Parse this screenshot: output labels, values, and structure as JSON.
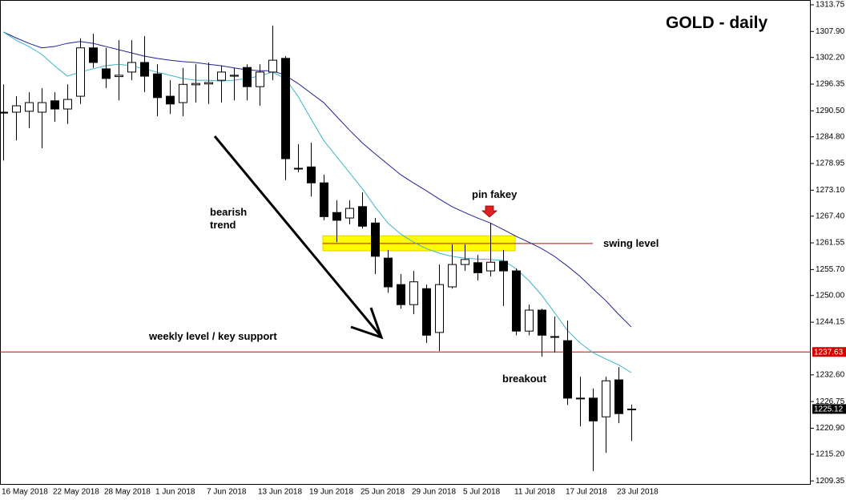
{
  "chart_data": {
    "type": "candlestick",
    "title": "GOLD - daily",
    "categories": [
      "16 May 2018",
      null,
      null,
      null,
      "22 May 2018",
      null,
      null,
      null,
      "28 May 2018",
      null,
      null,
      null,
      "1 Jun 2018",
      null,
      null,
      null,
      "7 Jun 2018",
      null,
      null,
      null,
      "13 Jun 2018",
      null,
      null,
      null,
      "19 Jun 2018",
      null,
      null,
      null,
      "25 Jun 2018",
      null,
      null,
      null,
      "29 Jun 2018",
      null,
      null,
      null,
      "5 Jul 2018",
      null,
      null,
      null,
      "11 Jul 2018",
      null,
      null,
      null,
      "17 Jul 2018",
      null,
      null,
      null,
      "23 Jul 2018",
      null
    ],
    "open": [
      1290.2,
      1290.2,
      1290.4,
      1290.2,
      1292.7,
      1290.9,
      1293.7,
      1304.3,
      1299.7,
      1298.0,
      1299.0,
      1301.1,
      1298.6,
      1293.7,
      1292.3,
      1296.2,
      1296.4,
      1297.2,
      1298.1,
      1300.0,
      1295.8,
      1299.0,
      1302.0,
      1277.9,
      1278.2,
      1274.7,
      1268.2,
      1267.0,
      1269.5,
      1265.9,
      1258.2,
      1252.4,
      1248.0,
      1251.5,
      1241.9,
      1251.9,
      1256.8,
      1257.2,
      1255.4,
      1257.5,
      1255.4,
      1242.2,
      1246.8,
      1241.0,
      1240.1,
      1227.5,
      1227.5,
      1223.4,
      1231.5,
      1225.0
    ],
    "high": [
      1296.3,
      1293.7,
      1294.6,
      1295.5,
      1294.6,
      1296.3,
      1306.4,
      1307.4,
      1304.3,
      1306.0,
      1306.0,
      1306.9,
      1300.7,
      1297.2,
      1299.9,
      1300.7,
      1301.1,
      1300.4,
      1299.9,
      1300.7,
      1300.7,
      1309.2,
      1302.5,
      1283.2,
      1283.5,
      1276.5,
      1270.9,
      1270.9,
      1272.6,
      1267.0,
      1260.0,
      1254.7,
      1255.4,
      1252.4,
      1256.8,
      1261.2,
      1261.2,
      1258.9,
      1265.9,
      1260.0,
      1255.9,
      1248.0,
      1247.1,
      1245.4,
      1244.5,
      1232.2,
      1229.6,
      1232.2,
      1234.3,
      1226.1
    ],
    "low": [
      1279.6,
      1284.0,
      1286.7,
      1282.3,
      1288.1,
      1287.6,
      1292.0,
      1299.9,
      1295.5,
      1292.8,
      1297.2,
      1294.6,
      1289.3,
      1289.8,
      1289.3,
      1292.3,
      1292.0,
      1292.3,
      1292.8,
      1292.8,
      1291.6,
      1297.2,
      1275.3,
      1277.0,
      1271.7,
      1266.5,
      1261.7,
      1265.6,
      1264.7,
      1254.7,
      1250.6,
      1247.1,
      1245.9,
      1239.6,
      1237.8,
      1251.5,
      1255.4,
      1253.3,
      1254.2,
      1247.7,
      1241.3,
      1241.3,
      1236.6,
      1237.5,
      1226.0,
      1221.3,
      1211.5,
      1215.5,
      1222.0,
      1218.1
    ],
    "close": [
      1290.0,
      1291.6,
      1292.3,
      1292.3,
      1290.9,
      1293.0,
      1304.3,
      1301.1,
      1297.6,
      1298.3,
      1301.1,
      1298.1,
      1293.4,
      1292.0,
      1296.3,
      1296.5,
      1296.7,
      1299.0,
      1298.3,
      1295.8,
      1299.0,
      1301.6,
      1280.0,
      1277.8,
      1274.7,
      1267.3,
      1266.5,
      1269.1,
      1265.2,
      1258.6,
      1251.9,
      1248.0,
      1253.0,
      1241.3,
      1252.4,
      1256.8,
      1257.9,
      1255.0,
      1257.3,
      1255.4,
      1242.2,
      1246.8,
      1241.3,
      1240.9,
      1227.5,
      1227.4,
      1222.5,
      1231.3,
      1224.1,
      1225.1
    ],
    "up_color": "#ffffff",
    "down_color": "#000000",
    "overlays": [
      {
        "color": "#20209a",
        "values": [
          1307.8,
          1306.5,
          1305.3,
          1304.3,
          1304.6,
          1305.3,
          1305.7,
          1305.3,
          1304.6,
          1303.9,
          1303.2,
          1302.5,
          1302.0,
          1301.6,
          1301.3,
          1301.1,
          1300.7,
          1300.4,
          1299.9,
          1299.5,
          1299.3,
          1299.3,
          1298.3,
          1296.5,
          1294.4,
          1292.3,
          1289.3,
          1286.3,
          1283.5,
          1281.1,
          1278.8,
          1276.5,
          1274.7,
          1273.0,
          1271.2,
          1269.5,
          1268.2,
          1267.0,
          1265.9,
          1264.5,
          1263.0,
          1261.7,
          1260.3,
          1258.6,
          1256.5,
          1254.2,
          1251.5,
          1248.9,
          1245.9,
          1243.1
        ]
      },
      {
        "color": "#3cb4cc",
        "values": [
          1307.8,
          1306.0,
          1304.6,
          1302.9,
          1300.4,
          1298.1,
          1299.0,
          1299.7,
          1300.4,
          1300.7,
          1300.4,
          1299.7,
          1299.0,
          1298.3,
          1297.6,
          1297.2,
          1297.2,
          1297.0,
          1297.2,
          1297.6,
          1298.1,
          1299.0,
          1297.6,
          1293.7,
          1288.8,
          1284.0,
          1280.5,
          1277.0,
          1273.5,
          1269.5,
          1265.9,
          1263.5,
          1261.7,
          1260.3,
          1259.3,
          1258.6,
          1258.2,
          1258.0,
          1257.9,
          1257.7,
          1255.9,
          1253.3,
          1250.1,
          1246.3,
          1242.4,
          1239.6,
          1237.5,
          1236.1,
          1234.8,
          1233.1
        ]
      }
    ],
    "ylim": [
      1208.5,
      1314.8
    ],
    "yticks": [
      1209.35,
      {
        "value": 1215.2,
        "label": "1215.20"
      },
      {
        "value": 1220.9,
        "label": "1220.90"
      },
      1226.75,
      {
        "value": 1232.6,
        "label": "1232.60"
      },
      1244.15,
      {
        "value": 1250,
        "label": "1250.00"
      },
      {
        "value": 1255.7,
        "label": "1255.70"
      },
      1261.55,
      {
        "value": 1267.4,
        "label": "1267.40"
      },
      {
        "value": 1273.1,
        "label": "1273.10"
      },
      1278.95,
      {
        "value": 1284.8,
        "label": "1284.80"
      },
      {
        "value": 1290.5,
        "label": "1290.50"
      },
      1296.35,
      {
        "value": 1302.2,
        "label": "1302.20"
      },
      {
        "value": 1307.9,
        "label": "1307.90"
      },
      1313.75
    ],
    "support_level": 1237.63,
    "last_price": 1225.12,
    "swing_level": 1261.4,
    "zone": [
      1259.8,
      1263.1
    ],
    "level_color": "#d40000",
    "zone_color": "#ffff00",
    "annotations": [
      "bearish trend",
      "weekly level / key support",
      "pin fakey",
      "breakout",
      "swing level"
    ]
  }
}
